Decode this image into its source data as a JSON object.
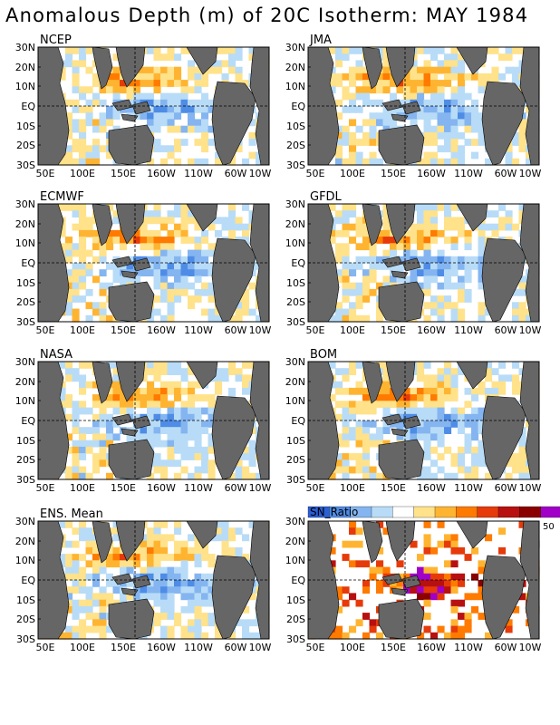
{
  "title": "Anomalous Depth (m) of 20C Isotherm: MAY 1984",
  "colors": {
    "land": "#666666",
    "ocean": "#ffffff",
    "scale": [
      "#2a5fd6",
      "#4e8ce6",
      "#84b5f0",
      "#b8dcf7",
      "#ffffff",
      "#ffe28a",
      "#ffb431",
      "#ff7a00",
      "#e63a0a",
      "#b81010",
      "#8a0000",
      "#a000c8"
    ]
  },
  "chart_data": [
    {
      "type": "heatmap",
      "panel": "NCEP",
      "ylim": [
        "30S",
        "30N"
      ],
      "x_ticks": [
        "50E",
        "100E",
        "150E",
        "160W",
        "110W",
        "60W",
        "10W"
      ],
      "y_ticks": [
        "30N",
        "20N",
        "10N",
        "EQ",
        "10S",
        "20S",
        "30S"
      ]
    },
    {
      "type": "heatmap",
      "panel": "JMA",
      "ylim": [
        "30S",
        "30N"
      ],
      "x_ticks": [
        "50E",
        "100E",
        "150E",
        "160W",
        "110W",
        "60W",
        "10W"
      ],
      "y_ticks": [
        "30N",
        "20N",
        "10N",
        "EQ",
        "10S",
        "20S",
        "30S"
      ]
    },
    {
      "type": "heatmap",
      "panel": "ECMWF",
      "ylim": [
        "30S",
        "30N"
      ],
      "x_ticks": [
        "50E",
        "100E",
        "150E",
        "160W",
        "110W",
        "60W",
        "10W"
      ],
      "y_ticks": [
        "30N",
        "20N",
        "10N",
        "EQ",
        "10S",
        "20S",
        "30S"
      ]
    },
    {
      "type": "heatmap",
      "panel": "GFDL",
      "ylim": [
        "30S",
        "30N"
      ],
      "x_ticks": [
        "50E",
        "100E",
        "150E",
        "160W",
        "110W",
        "60W",
        "10W"
      ],
      "y_ticks": [
        "30N",
        "20N",
        "10N",
        "EQ",
        "10S",
        "20S",
        "30S"
      ]
    },
    {
      "type": "heatmap",
      "panel": "NASA",
      "ylim": [
        "30S",
        "30N"
      ],
      "x_ticks": [
        "50E",
        "100E",
        "150E",
        "160W",
        "110W",
        "60W",
        "10W"
      ],
      "y_ticks": [
        "30N",
        "20N",
        "10N",
        "EQ",
        "10S",
        "20S",
        "30S"
      ]
    },
    {
      "type": "heatmap",
      "panel": "BOM",
      "ylim": [
        "30S",
        "30N"
      ],
      "x_ticks": [
        "50E",
        "100E",
        "150E",
        "160W",
        "110W",
        "60W",
        "10W"
      ],
      "y_ticks": [
        "30N",
        "20N",
        "10N",
        "EQ",
        "10S",
        "20S",
        "30S"
      ]
    },
    {
      "type": "heatmap",
      "panel": "ENS. Mean",
      "ylim": [
        "30S",
        "30N"
      ],
      "x_ticks": [
        "50E",
        "100E",
        "150E",
        "160W",
        "110W",
        "60W",
        "10W"
      ],
      "y_ticks": [
        "30N",
        "20N",
        "10N",
        "EQ",
        "10S",
        "20S",
        "30S"
      ]
    },
    {
      "type": "heatmap",
      "panel": "SN_Ratio",
      "ylim": [
        "30S",
        "30N"
      ],
      "x_ticks": [
        "50E",
        "100E",
        "150E",
        "160W",
        "110W",
        "60W",
        "10W"
      ],
      "y_ticks": [
        "30N",
        "20N",
        "10N",
        "EQ",
        "10S",
        "20S",
        "30S"
      ],
      "legend": {
        "label": "SN_Ratio",
        "max_label": "50"
      }
    }
  ]
}
